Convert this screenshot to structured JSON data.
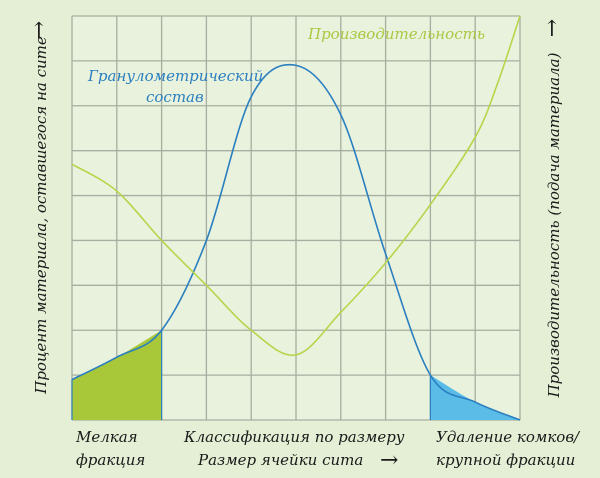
{
  "chart_data": {
    "type": "line",
    "title": "",
    "y_left_label": "Процент материала, оставшегося на сите",
    "y_right_label": "Производительность (подача материала)",
    "x_labels": {
      "left": [
        "Мелкая",
        "фракция"
      ],
      "center_top": "Классификация по размеру",
      "center_bottom": "Размер ячейки сита",
      "right": [
        "Удаление комков/",
        "крупной фракции"
      ]
    },
    "arrow_glyph": "→",
    "grid": true,
    "x_range": [
      0,
      10
    ],
    "y_range": [
      0,
      9
    ],
    "series": [
      {
        "name": "Гранулометрический состав",
        "name_lines": [
          "Гранулометрический",
          "состав"
        ],
        "color": "#2a7fc0",
        "points": [
          [
            0,
            0.9
          ],
          [
            1,
            1.4
          ],
          [
            2,
            2.0
          ],
          [
            3,
            4.0
          ],
          [
            4,
            7.2
          ],
          [
            5,
            7.9
          ],
          [
            6,
            6.8
          ],
          [
            7,
            3.7
          ],
          [
            8,
            1.0
          ],
          [
            9,
            0.4
          ],
          [
            10,
            0.0
          ]
        ]
      },
      {
        "name": "Производительность",
        "color": "#b8d44a",
        "points": [
          [
            0,
            5.7
          ],
          [
            1,
            5.1
          ],
          [
            2,
            4.0
          ],
          [
            3,
            3.0
          ],
          [
            4,
            2.0
          ],
          [
            5,
            1.45
          ],
          [
            6,
            2.4
          ],
          [
            7,
            3.5
          ],
          [
            8,
            4.8
          ],
          [
            9,
            6.3
          ],
          [
            9.5,
            7.5
          ],
          [
            10,
            9.0
          ]
        ]
      }
    ],
    "shaded_regions": [
      {
        "name": "fine",
        "x": [
          0,
          2
        ],
        "series": "Гранулометрический состав",
        "color": "#a8c83a"
      },
      {
        "name": "coarse",
        "x": [
          8,
          10
        ],
        "series": "Гранулометрический состав",
        "color": "#5cbce8"
      }
    ]
  }
}
